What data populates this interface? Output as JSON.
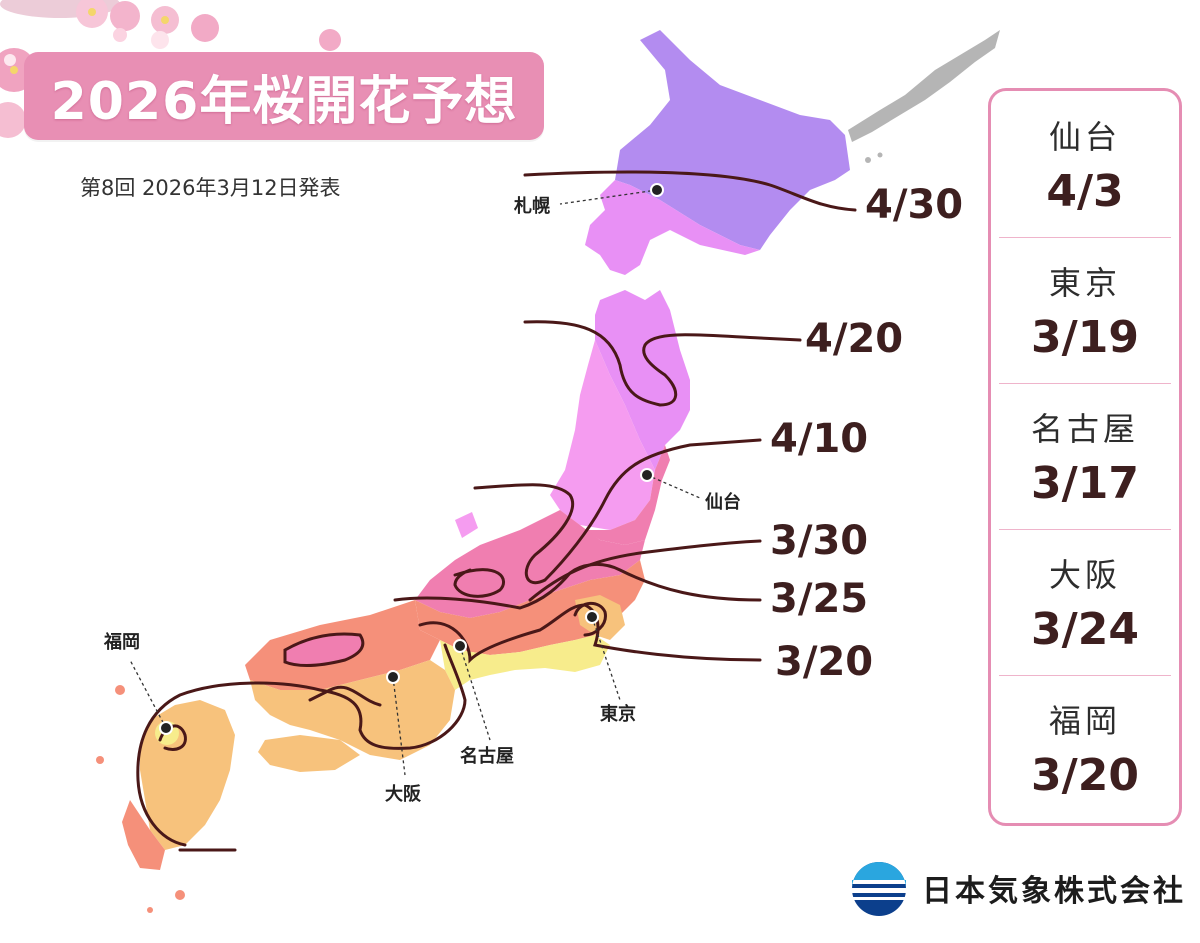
{
  "title": "2026年桜開花予想",
  "subtitle": "第8回  2026年3月12日発表",
  "map": {
    "isolines": [
      {
        "date": "4/30"
      },
      {
        "date": "4/20"
      },
      {
        "date": "4/10"
      },
      {
        "date": "3/30"
      },
      {
        "date": "3/25"
      },
      {
        "date": "3/20"
      }
    ],
    "cities": [
      {
        "name": "札幌"
      },
      {
        "name": "仙台"
      },
      {
        "name": "東京"
      },
      {
        "name": "名古屋"
      },
      {
        "name": "大阪"
      },
      {
        "name": "福岡"
      }
    ],
    "colors": {
      "zone_0430": "#b38cf0",
      "zone_0420": "#e890f5",
      "zone_0410": "#f59cf0",
      "zone_0330": "#f07eb0",
      "zone_0325": "#f5907a",
      "zone_0320": "#f7c27c",
      "zone_early": "#f7ec8c",
      "northern_territories": "#b5b5b5",
      "isoline": "#4a1818"
    }
  },
  "panel": [
    {
      "city": "仙台",
      "date": "4/3"
    },
    {
      "city": "東京",
      "date": "3/19"
    },
    {
      "city": "名古屋",
      "date": "3/17"
    },
    {
      "city": "大阪",
      "date": "3/24"
    },
    {
      "city": "福岡",
      "date": "3/20"
    }
  ],
  "logo": {
    "text": "日本気象株式会社"
  },
  "colors": {
    "title_bg": "#e88fb4",
    "panel_border": "#e58db3",
    "date_text": "#3d1f1f"
  }
}
